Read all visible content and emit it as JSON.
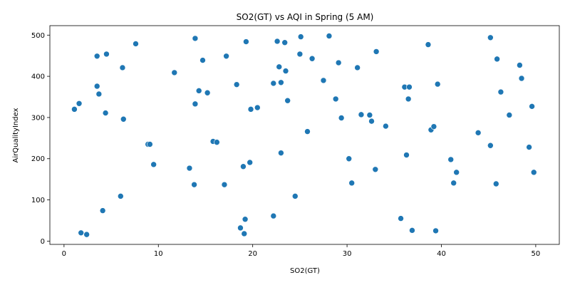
{
  "chart_data": {
    "type": "scatter",
    "title": "SO2(GT) vs AQI in Spring (5 AM)",
    "xlabel": "SO2(GT)",
    "ylabel": "AirQualityIndex",
    "xlim": [
      -1.5,
      52.5
    ],
    "ylim": [
      -8,
      523
    ],
    "xticks": [
      0,
      10,
      20,
      30,
      40,
      50
    ],
    "yticks": [
      0,
      100,
      200,
      300,
      400,
      500
    ],
    "grid": false,
    "color": "#1f77b4",
    "points": [
      {
        "x": 1.1,
        "y": 320
      },
      {
        "x": 1.6,
        "y": 334
      },
      {
        "x": 1.8,
        "y": 20
      },
      {
        "x": 2.4,
        "y": 16
      },
      {
        "x": 3.5,
        "y": 449
      },
      {
        "x": 3.5,
        "y": 376
      },
      {
        "x": 3.7,
        "y": 357
      },
      {
        "x": 4.1,
        "y": 74
      },
      {
        "x": 4.4,
        "y": 311
      },
      {
        "x": 4.5,
        "y": 454
      },
      {
        "x": 6.0,
        "y": 109
      },
      {
        "x": 6.2,
        "y": 421
      },
      {
        "x": 6.3,
        "y": 296
      },
      {
        "x": 7.6,
        "y": 479
      },
      {
        "x": 8.9,
        "y": 235
      },
      {
        "x": 9.1,
        "y": 235
      },
      {
        "x": 9.5,
        "y": 186
      },
      {
        "x": 11.7,
        "y": 409
      },
      {
        "x": 13.3,
        "y": 177
      },
      {
        "x": 13.8,
        "y": 137
      },
      {
        "x": 13.9,
        "y": 333
      },
      {
        "x": 13.9,
        "y": 492
      },
      {
        "x": 14.3,
        "y": 365
      },
      {
        "x": 14.7,
        "y": 439
      },
      {
        "x": 15.2,
        "y": 360
      },
      {
        "x": 15.8,
        "y": 242
      },
      {
        "x": 16.2,
        "y": 240
      },
      {
        "x": 17.0,
        "y": 137
      },
      {
        "x": 17.2,
        "y": 449
      },
      {
        "x": 18.3,
        "y": 380
      },
      {
        "x": 18.7,
        "y": 32
      },
      {
        "x": 19.0,
        "y": 181
      },
      {
        "x": 19.1,
        "y": 18
      },
      {
        "x": 19.2,
        "y": 53
      },
      {
        "x": 19.3,
        "y": 484
      },
      {
        "x": 19.7,
        "y": 191
      },
      {
        "x": 19.8,
        "y": 320
      },
      {
        "x": 20.5,
        "y": 324
      },
      {
        "x": 22.2,
        "y": 61
      },
      {
        "x": 22.2,
        "y": 383
      },
      {
        "x": 22.6,
        "y": 485
      },
      {
        "x": 22.8,
        "y": 423
      },
      {
        "x": 23.0,
        "y": 214
      },
      {
        "x": 23.0,
        "y": 385
      },
      {
        "x": 23.4,
        "y": 482
      },
      {
        "x": 23.5,
        "y": 413
      },
      {
        "x": 23.7,
        "y": 341
      },
      {
        "x": 24.5,
        "y": 109
      },
      {
        "x": 25.0,
        "y": 454
      },
      {
        "x": 25.1,
        "y": 496
      },
      {
        "x": 25.8,
        "y": 266
      },
      {
        "x": 26.3,
        "y": 443
      },
      {
        "x": 27.5,
        "y": 390
      },
      {
        "x": 28.1,
        "y": 498
      },
      {
        "x": 28.8,
        "y": 345
      },
      {
        "x": 29.1,
        "y": 433
      },
      {
        "x": 29.4,
        "y": 299
      },
      {
        "x": 30.2,
        "y": 200
      },
      {
        "x": 30.5,
        "y": 141
      },
      {
        "x": 31.1,
        "y": 421
      },
      {
        "x": 31.5,
        "y": 307
      },
      {
        "x": 32.4,
        "y": 306
      },
      {
        "x": 32.6,
        "y": 291
      },
      {
        "x": 33.0,
        "y": 174
      },
      {
        "x": 33.1,
        "y": 460
      },
      {
        "x": 34.1,
        "y": 279
      },
      {
        "x": 35.7,
        "y": 55
      },
      {
        "x": 36.1,
        "y": 374
      },
      {
        "x": 36.3,
        "y": 209
      },
      {
        "x": 36.5,
        "y": 345
      },
      {
        "x": 36.6,
        "y": 374
      },
      {
        "x": 36.9,
        "y": 26
      },
      {
        "x": 38.6,
        "y": 477
      },
      {
        "x": 38.9,
        "y": 270
      },
      {
        "x": 39.2,
        "y": 278
      },
      {
        "x": 39.4,
        "y": 25
      },
      {
        "x": 39.6,
        "y": 381
      },
      {
        "x": 41.0,
        "y": 198
      },
      {
        "x": 41.3,
        "y": 141
      },
      {
        "x": 41.6,
        "y": 167
      },
      {
        "x": 43.9,
        "y": 263
      },
      {
        "x": 45.2,
        "y": 232
      },
      {
        "x": 45.2,
        "y": 494
      },
      {
        "x": 45.8,
        "y": 139
      },
      {
        "x": 45.9,
        "y": 442
      },
      {
        "x": 46.3,
        "y": 362
      },
      {
        "x": 47.2,
        "y": 306
      },
      {
        "x": 48.3,
        "y": 427
      },
      {
        "x": 48.5,
        "y": 395
      },
      {
        "x": 49.3,
        "y": 228
      },
      {
        "x": 49.6,
        "y": 327
      },
      {
        "x": 49.8,
        "y": 167
      }
    ]
  }
}
